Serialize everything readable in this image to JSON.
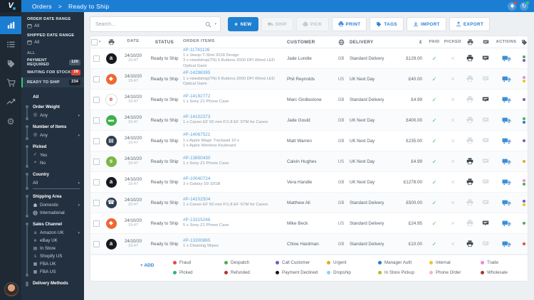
{
  "topbar": {
    "breadcrumb_section": "Orders",
    "breadcrumb_separator": ">",
    "breadcrumb_page": "Ready to Ship"
  },
  "sidebar": {
    "order_date_range_label": "ORDER DATE RANGE",
    "order_date_range_value": "All",
    "shipped_date_range_label": "SHIPPED DATE RANGE",
    "shipped_date_range_value": "All",
    "all_section_label": "ALL",
    "status_filters": [
      {
        "label": "PAYMENT REQUIRED",
        "count": "120"
      },
      {
        "label": "WAITING FOR STOCK",
        "count": "28"
      },
      {
        "label": "READY TO SHIP",
        "count": "234"
      }
    ],
    "filter_all_label": "All",
    "order_weight_label": "Order Weight",
    "order_weight_value": "Any",
    "number_of_items_label": "Number of Items",
    "number_of_items_value": "Any",
    "picked_label": "Picked",
    "picked_yes": "Yes",
    "picked_no": "No",
    "country_label": "Country",
    "country_value": "All",
    "shipping_area_label": "Shipping Area",
    "shipping_area_domestic": "Domestic",
    "shipping_area_international": "International",
    "sales_channel_label": "Sales Channel",
    "sales_channel_options": [
      {
        "label": "Amazon UK",
        "icon": "amazon-icon",
        "char": "a",
        "caret": true
      },
      {
        "label": "eBay UK",
        "icon": "ebay-icon",
        "char": "e"
      },
      {
        "label": "In Store",
        "icon": "store-icon",
        "char": "▤"
      },
      {
        "label": "Shopify US",
        "icon": "shopify-icon",
        "char": "s"
      },
      {
        "label": "FBA UK",
        "icon": "fba-box-icon",
        "char": "▦"
      },
      {
        "label": "FBA US",
        "icon": "fba-box-icon",
        "char": "▦"
      }
    ],
    "delivery_methods_label": "Delivery Methods"
  },
  "toolbar": {
    "search_placeholder": "Search...",
    "new_label": "NEW",
    "ship_label": "SHIP",
    "pick_label": "PICK",
    "print_label": "PRINT",
    "tags_label": "TAGS",
    "import_label": "IMPORT",
    "export_label": "EXPORT"
  },
  "table": {
    "headers": {
      "date": "DATE",
      "status": "STATUS",
      "order_items": "ORDER ITEMS",
      "customer": "CUSTOMER",
      "delivery": "DELIVERY",
      "currency": "£",
      "paid": "PAID",
      "picked": "PICKED",
      "actions": "ACTIONS"
    },
    "rows": [
      {
        "channel": "Amazon",
        "channel_char": "a",
        "channel_bg": "#16191f",
        "channel_fg": "#ffffff",
        "date": "24/10/20",
        "time": "15:47",
        "status": "Ready to Ship",
        "order_no": "#P-11741126",
        "items": [
          "1 x Veeqo T-Shirt 2018 Design",
          "3 x nixedshop(TN) 6 Buttons 2000 DPI Wired LED Optical Gami"
        ],
        "customer": "Jade Lundie",
        "country": "GB",
        "delivery": "Standard Delivery",
        "total": "£129.00",
        "paid": true,
        "picked": false,
        "printed": true,
        "noted": true,
        "tags": [
          "#4cae54",
          "#7b58c4"
        ]
      },
      {
        "channel": "Magento",
        "channel_char": "◆",
        "channel_bg": "#ee6832",
        "channel_fg": "#ffffff",
        "date": "24/10/20",
        "time": "15:47",
        "status": "Ready to Ship",
        "order_no": "#P-14298395",
        "items": [
          "1 x nixedshop(TN) 6 Buttons 2000 DPI Wired LED Optical Gami"
        ],
        "customer": "Phil Reynolds",
        "country": "US",
        "delivery": "UK Next Day",
        "total": "£40.00",
        "paid": true,
        "picked": false,
        "printed": false,
        "noted": false,
        "tags": [
          "#ef86e0",
          "#f2c21f"
        ]
      },
      {
        "channel": "eBay",
        "channel_char": "e",
        "channel_bg": "#ffffff",
        "channel_fg": "#e53238",
        "channel_border": true,
        "date": "24/10/20",
        "time": "15:47",
        "status": "Ready to Ship",
        "order_no": "#P-14192772",
        "items": [
          "1 x Sony Z1 Phone Case"
        ],
        "customer": "Marc Girdlestone",
        "country": "GB",
        "delivery": "Standard Delivery",
        "total": "£4.99",
        "paid": true,
        "picked": false,
        "printed": false,
        "noted": true,
        "tags": [
          "#7b58c4"
        ]
      },
      {
        "channel": "Vend",
        "channel_char": "▬",
        "channel_bg": "#3cb24a",
        "channel_fg": "#ffffff",
        "date": "24/10/20",
        "time": "15:47",
        "status": "Ready to Ship",
        "order_no": "#P-14102373",
        "items": [
          "1 x Canon EF 50 mm F/1.8 EF STM for Canon"
        ],
        "customer": "Jade Gould",
        "country": "GB",
        "delivery": "UK Next Day",
        "total": "£400.00",
        "paid": true,
        "picked": false,
        "printed": false,
        "noted": false,
        "tags": [
          "#4cae54",
          "#1f7fd1"
        ]
      },
      {
        "channel": "In Store",
        "channel_char": "▤",
        "channel_bg": "#2e3f50",
        "channel_fg": "#ffffff",
        "date": "24/10/20",
        "time": "15:47",
        "status": "Ready to Ship",
        "order_no": "#P-14067521",
        "items": [
          "1 x Apple Magic Trackpad 10 x",
          "1 x Apple Wireless Keyboard"
        ],
        "customer": "Matt Warren",
        "country": "GB",
        "delivery": "UK Next Day",
        "total": "£235.00",
        "paid": true,
        "picked": false,
        "printed": false,
        "noted": false,
        "tags": [
          "#7b58c4"
        ]
      },
      {
        "channel": "Shopify",
        "channel_char": "s",
        "channel_bg": "#7ab648",
        "channel_fg": "#ffffff",
        "date": "24/10/20",
        "time": "15:47",
        "status": "Ready to Ship",
        "order_no": "#P-13850430",
        "items": [
          "1 x Sony Z1 Phone Case"
        ],
        "customer": "Calvin Hughes",
        "country": "US",
        "delivery": "UK Next Day",
        "total": "£4.99",
        "paid": true,
        "picked": false,
        "printed": true,
        "noted": false,
        "tags": [
          "#eca428"
        ]
      },
      {
        "channel": "Amazon",
        "channel_char": "a",
        "channel_bg": "#16191f",
        "channel_fg": "#ffffff",
        "date": "24/10/20",
        "time": "15:47",
        "status": "Ready to Ship",
        "order_no": "#P-10040724",
        "items": [
          "3 x Galaxy S9 32GB"
        ],
        "customer": "Vera Handle",
        "country": "GB",
        "delivery": "UK Next Day",
        "total": "£1278.00",
        "paid": true,
        "picked": false,
        "printed": true,
        "noted": false,
        "tags": [
          "#ef86e0",
          "#4cae54"
        ]
      },
      {
        "channel": "Phone Order",
        "channel_char": "☎",
        "channel_bg": "#2e3f50",
        "channel_fg": "#ffffff",
        "date": "24/10/20",
        "time": "15:47",
        "status": "Ready to Ship",
        "order_no": "#P-14102504",
        "items": [
          "1 x Canon EF 50 mm F/1.8 EF STM for Canon"
        ],
        "customer": "Matthew Ali",
        "country": "GB",
        "delivery": "Standard Delivery",
        "total": "£500.00",
        "paid": true,
        "picked": false,
        "printed": false,
        "noted": false,
        "tags": [
          "#7b58c4",
          "#f2c21f"
        ]
      },
      {
        "channel": "Magento",
        "channel_char": "◆",
        "channel_bg": "#ee6832",
        "channel_fg": "#ffffff",
        "date": "24/10/20",
        "time": "15:47",
        "status": "Ready to Ship",
        "order_no": "#P-13315248",
        "items": [
          "5 x Sony Z1 Phone Case"
        ],
        "customer": "Mike Beck",
        "country": "US",
        "delivery": "Standard Delivery",
        "total": "£24.95",
        "paid": true,
        "picked": false,
        "printed": false,
        "noted": true,
        "tags": [
          "#4cae54"
        ]
      },
      {
        "channel": "Amazon",
        "channel_char": "a",
        "channel_bg": "#16191f",
        "channel_fg": "#ffffff",
        "date": "24/10/20",
        "time": "15:47",
        "status": "Ready to Ship",
        "order_no": "#P-13300865",
        "items": [
          "1 x Cleaning Wipes"
        ],
        "customer": "Chloe Hardman",
        "country": "GB",
        "delivery": "Standard Delivery",
        "total": "£10.00",
        "paid": true,
        "picked": false,
        "printed": true,
        "noted": false,
        "tags": [
          "#e8493a"
        ]
      }
    ]
  },
  "legend": {
    "add_label": "+ ADD",
    "row1": [
      {
        "label": "Fraud",
        "color": "#e8493a"
      },
      {
        "label": "Despatch",
        "color": "#4cae54"
      },
      {
        "label": "Call Customer",
        "color": "#7b58c4"
      },
      {
        "label": "Urgent",
        "color": "#eca428"
      },
      {
        "label": "Manager Auth",
        "color": "#1f7fd1"
      },
      {
        "label": "Internal",
        "color": "#f2c21f"
      },
      {
        "label": "Trade",
        "color": "#ef86e0"
      }
    ],
    "row2": [
      {
        "label": "Picked",
        "color": "#2fb380"
      },
      {
        "label": "Refunded",
        "color": "#b5342c"
      },
      {
        "label": "Payment Declined",
        "color": "#14181c"
      },
      {
        "label": "Dropship",
        "color": "#8fd0ee"
      },
      {
        "label": "In Store Pickup",
        "color": "#b0bd35"
      },
      {
        "label": "Phone Order",
        "color": "#f2b6c0"
      },
      {
        "label": "Wholesale",
        "color": "#a03830"
      }
    ]
  }
}
